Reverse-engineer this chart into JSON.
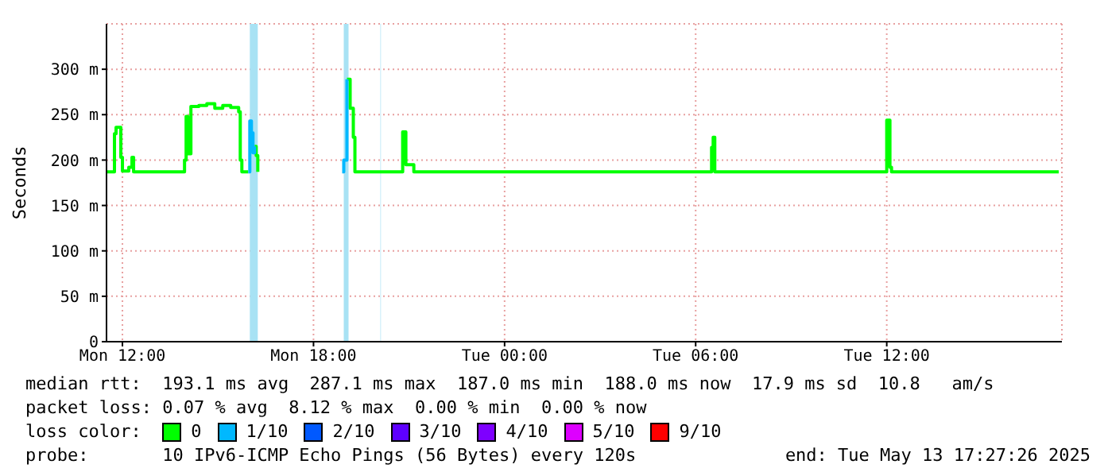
{
  "chart_data": {
    "type": "step",
    "ylabel": "Seconds",
    "xlim": [
      "2025-05-12T11:30",
      "2025-05-13T17:30"
    ],
    "xticks": [
      {
        "value": "2025-05-12T12:00",
        "label": "Mon 12:00"
      },
      {
        "value": "2025-05-12T18:00",
        "label": "Mon 18:00"
      },
      {
        "value": "2025-05-13T00:00",
        "label": "Tue 00:00"
      },
      {
        "value": "2025-05-13T06:00",
        "label": "Tue 06:00"
      },
      {
        "value": "2025-05-13T12:00",
        "label": "Tue 12:00"
      }
    ],
    "ylim": [
      0,
      350
    ],
    "yticks": [
      0,
      {
        "value": 50,
        "label": "50 m"
      },
      {
        "value": 100,
        "label": "100 m"
      },
      {
        "value": 150,
        "label": "150 m"
      },
      {
        "value": 200,
        "label": "200 m"
      },
      {
        "value": 250,
        "label": "250 m"
      },
      {
        "value": 300,
        "label": "300 m"
      }
    ],
    "grid": true,
    "legend": "bottom",
    "legend_title": "loss color:",
    "line_style": "solid",
    "series": [
      {
        "name": "0",
        "color": "#00ff00",
        "x": [
          "2025-05-12T11:30",
          "2025-05-12T11:42",
          "2025-05-12T11:45",
          "2025-05-12T11:48",
          "2025-05-12T11:54",
          "2025-05-12T11:57",
          "2025-05-12T12:00",
          "2025-05-12T12:09",
          "2025-05-12T12:12",
          "2025-05-12T12:18",
          "2025-05-12T12:21",
          "2025-05-12T13:57",
          "2025-05-12T14:00",
          "2025-05-12T14:03",
          "2025-05-12T14:09",
          "2025-05-12T14:24",
          "2025-05-12T14:39",
          "2025-05-12T14:54",
          "2025-05-12T15:09",
          "2025-05-12T15:24",
          "2025-05-12T15:39",
          "2025-05-12T15:42",
          "2025-05-12T15:45",
          "2025-05-12T15:57",
          "2025-05-12T16:00",
          "2025-05-12T16:09",
          "2025-05-12T16:12",
          "2025-05-12T16:15",
          "2025-05-12T18:57",
          "2025-05-12T19:03",
          "2025-05-12T19:09",
          "2025-05-12T19:15",
          "2025-05-12T19:18",
          "2025-05-12T20:48",
          "2025-05-12T20:54",
          "2025-05-12T21:03",
          "2025-05-12T21:09",
          "2025-05-13T06:30",
          "2025-05-13T06:33",
          "2025-05-13T06:36",
          "2025-05-13T06:42",
          "2025-05-13T11:57",
          "2025-05-13T12:00",
          "2025-05-13T12:06",
          "2025-05-13T12:09",
          "2025-05-13T17:24"
        ],
        "values": [
          187,
          187,
          229,
          236,
          236,
          203,
          188,
          188,
          192,
          203,
          187,
          200,
          248,
          207,
          259,
          260,
          262,
          257,
          260,
          258,
          253,
          200,
          187,
          187,
          null,
          215,
          205,
          187,
          null,
          289,
          257,
          225,
          187,
          231,
          195,
          195,
          187,
          214,
          225,
          187,
          187,
          187,
          244,
          192,
          187,
          187
        ]
      },
      {
        "name": "1/10",
        "color": "#00b8ff",
        "x": [
          "2025-05-12T15:57",
          "2025-05-12T16:00",
          "2025-05-12T16:03",
          "2025-05-12T16:06",
          "2025-05-12T16:09",
          "2025-05-12T18:54",
          "2025-05-12T18:57",
          "2025-05-12T19:03"
        ],
        "values": [
          187,
          243,
          230,
          208,
          215,
          187,
          200,
          289
        ]
      },
      {
        "name": "2/10",
        "color": "#0059ff"
      },
      {
        "name": "3/10",
        "color": "#5e00ff"
      },
      {
        "name": "4/10",
        "color": "#7e00ff"
      },
      {
        "name": "5/10",
        "color": "#dd00ff"
      },
      {
        "name": "9/10",
        "color": "#ff0000"
      }
    ],
    "bands": [
      {
        "axis": "x",
        "from": "2025-05-12T16:00",
        "to": "2025-05-12T16:15",
        "color": "#a8e2f4"
      },
      {
        "axis": "x",
        "from": "2025-05-12T18:57",
        "to": "2025-05-12T19:06",
        "color": "#a8e2f4"
      },
      {
        "axis": "x",
        "from": "2025-05-12T20:06",
        "to": "2025-05-12T20:07",
        "color": "#a8e2f4"
      }
    ],
    "annotations": [
      "median rtt:  193.1 ms avg  287.1 ms max  187.0 ms min  188.0 ms now  17.9 ms sd  10.8   am/s",
      "packet loss: 0.07 % avg  8.12 % max  0.00 % min  0.00 % now",
      "probe:       10 IPv6-ICMP Echo Pings (56 Bytes) every 120s",
      "end: Tue May 13 17:27:26 2025"
    ]
  }
}
